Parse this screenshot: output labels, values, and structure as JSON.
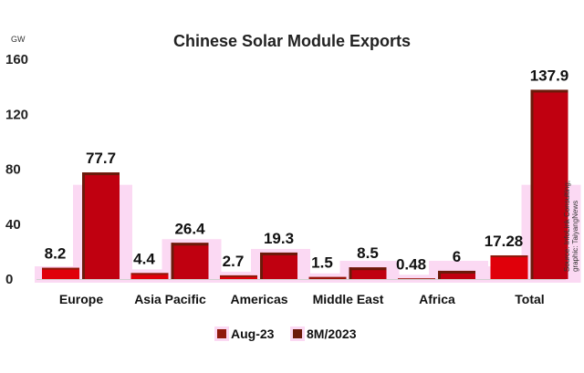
{
  "chart_data": {
    "type": "bar",
    "title": "Chinese Solar Module Exports",
    "ylabel": "GW",
    "xlabel": "",
    "ylim": [
      0,
      160
    ],
    "yticks": [
      0,
      40,
      80,
      120,
      160
    ],
    "grid": false,
    "legend_position": "bottom",
    "categories": [
      "Europe",
      "Asia Pacific",
      "Americas",
      "Middle East",
      "Africa",
      "Total"
    ],
    "series": [
      {
        "name": "Aug-23",
        "values": [
          8.2,
          4.4,
          2.7,
          1.5,
          0.48,
          17.28
        ],
        "labels": [
          "8.2",
          "4.4",
          "2.7",
          "1.5",
          "0.48",
          "17.28"
        ],
        "color": "#e0000a",
        "dark_color": "#8f1a0c"
      },
      {
        "name": "8M/2023",
        "values": [
          77.7,
          26.4,
          19.3,
          8.5,
          6,
          137.9
        ],
        "labels": [
          "77.7",
          "26.4",
          "19.3",
          "8.5",
          "6",
          "137.9"
        ],
        "color": "#c00010",
        "dark_color": "#6b1a0a"
      }
    ],
    "highlight_color": "#fbd9f3",
    "source_lines": [
      "Source: InfoLink Consulting;",
      "graphic: TaiyangNews"
    ]
  }
}
